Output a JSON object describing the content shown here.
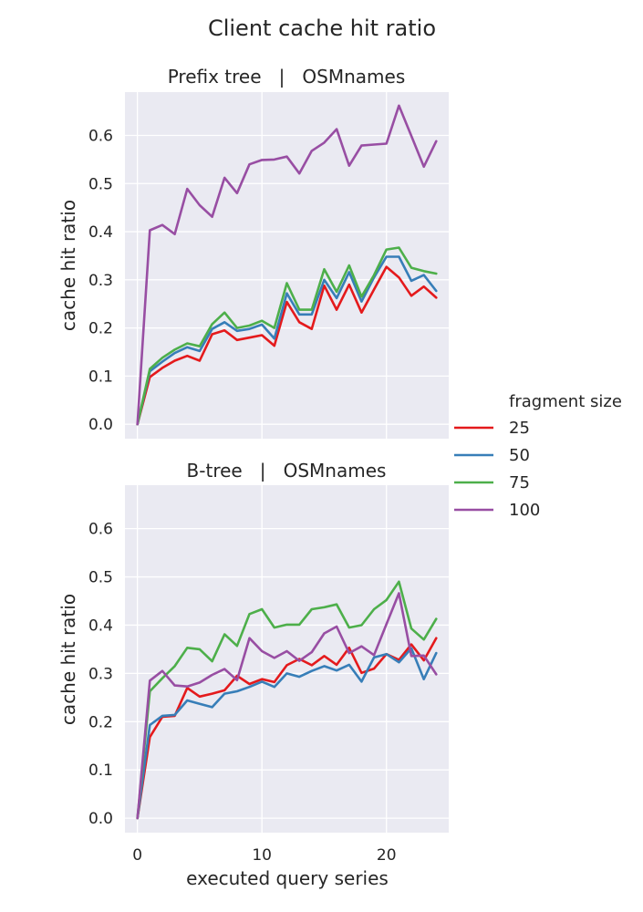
{
  "chart_data": {
    "type": "line",
    "title": "Client cache hit ratio",
    "xlabel": "executed query series",
    "ylabel": "cache hit ratio",
    "xlim": [
      -1,
      25
    ],
    "ylim": [
      -0.03,
      0.69
    ],
    "xticks": [
      0,
      10,
      20
    ],
    "yticks": [
      0.0,
      0.1,
      0.2,
      0.3,
      0.4,
      0.5,
      0.6
    ],
    "grid": true,
    "legend": {
      "title": "fragment size",
      "placement": "right"
    },
    "colors": {
      "25": "#e41a1c",
      "50": "#377eb8",
      "75": "#4daf4a",
      "100": "#984ea3"
    },
    "x": [
      0,
      1,
      2,
      3,
      4,
      5,
      6,
      7,
      8,
      9,
      10,
      11,
      12,
      13,
      14,
      15,
      16,
      17,
      18,
      19,
      20,
      21,
      22,
      23,
      24
    ],
    "panels": [
      {
        "title": "Prefix tree   |   OSMnames",
        "series": [
          {
            "name": "25",
            "values": [
              0.0,
              0.098,
              0.117,
              0.132,
              0.142,
              0.132,
              0.187,
              0.195,
              0.175,
              0.18,
              0.185,
              0.163,
              0.254,
              0.212,
              0.198,
              0.288,
              0.238,
              0.29,
              0.232,
              0.28,
              0.327,
              0.305,
              0.267,
              0.286,
              0.263
            ]
          },
          {
            "name": "50",
            "values": [
              0.0,
              0.11,
              0.13,
              0.148,
              0.16,
              0.152,
              0.198,
              0.212,
              0.194,
              0.198,
              0.207,
              0.178,
              0.272,
              0.228,
              0.228,
              0.3,
              0.262,
              0.316,
              0.255,
              0.305,
              0.348,
              0.348,
              0.298,
              0.31,
              0.277
            ]
          },
          {
            "name": "75",
            "values": [
              0.0,
              0.115,
              0.138,
              0.155,
              0.168,
              0.162,
              0.208,
              0.232,
              0.2,
              0.205,
              0.215,
              0.2,
              0.293,
              0.238,
              0.238,
              0.322,
              0.275,
              0.33,
              0.265,
              0.31,
              0.363,
              0.367,
              0.325,
              0.318,
              0.313
            ]
          },
          {
            "name": "100",
            "values": [
              0.0,
              0.403,
              0.414,
              0.395,
              0.489,
              0.455,
              0.431,
              0.512,
              0.48,
              0.54,
              0.549,
              0.55,
              0.556,
              0.521,
              0.568,
              0.585,
              0.613,
              0.537,
              0.579,
              0.581,
              0.583,
              0.662,
              0.599,
              0.535,
              0.588
            ]
          }
        ]
      },
      {
        "title": "B-tree   |   OSMnames",
        "series": [
          {
            "name": "25",
            "values": [
              0.0,
              0.168,
              0.21,
              0.212,
              0.27,
              0.252,
              0.258,
              0.265,
              0.295,
              0.278,
              0.288,
              0.282,
              0.317,
              0.33,
              0.317,
              0.336,
              0.318,
              0.353,
              0.301,
              0.31,
              0.34,
              0.328,
              0.36,
              0.327,
              0.373
            ]
          },
          {
            "name": "50",
            "values": [
              0.0,
              0.193,
              0.212,
              0.214,
              0.244,
              0.237,
              0.23,
              0.258,
              0.263,
              0.272,
              0.283,
              0.272,
              0.3,
              0.293,
              0.305,
              0.315,
              0.306,
              0.318,
              0.283,
              0.333,
              0.34,
              0.323,
              0.352,
              0.288,
              0.342
            ]
          },
          {
            "name": "75",
            "values": [
              0.0,
              0.263,
              0.29,
              0.315,
              0.353,
              0.35,
              0.325,
              0.381,
              0.357,
              0.423,
              0.433,
              0.395,
              0.401,
              0.401,
              0.433,
              0.437,
              0.443,
              0.395,
              0.4,
              0.433,
              0.452,
              0.49,
              0.393,
              0.37,
              0.413
            ]
          },
          {
            "name": "100",
            "values": [
              0.0,
              0.285,
              0.305,
              0.275,
              0.273,
              0.281,
              0.297,
              0.309,
              0.286,
              0.373,
              0.346,
              0.332,
              0.346,
              0.326,
              0.344,
              0.383,
              0.397,
              0.342,
              0.356,
              0.338,
              0.402,
              0.466,
              0.336,
              0.337,
              0.298
            ]
          }
        ]
      }
    ]
  }
}
